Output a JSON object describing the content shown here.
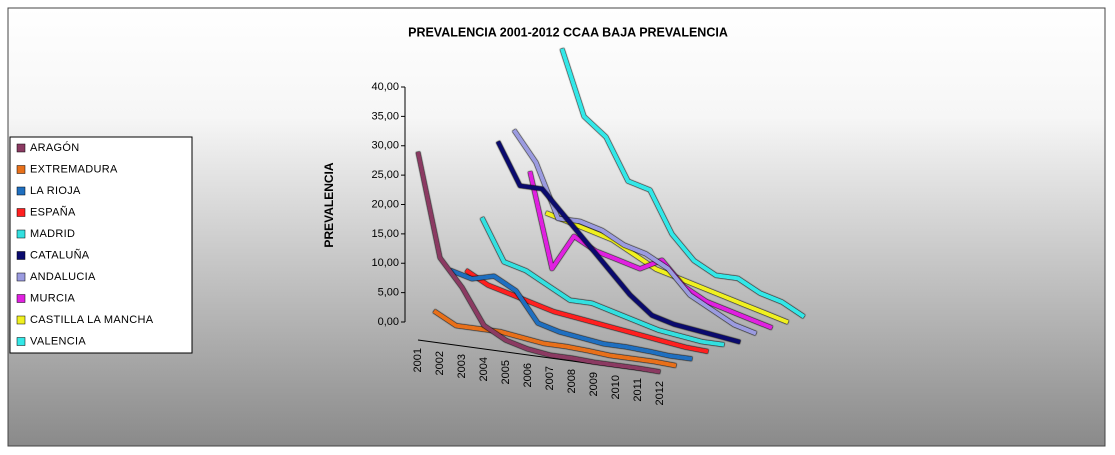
{
  "chart_data": {
    "type": "line3d",
    "title": "PREVALENCIA 2001-2012 CCAA BAJA PREVALENCIA",
    "y_label": "PREVALENCIA",
    "categories": [
      "2001",
      "2002",
      "2003",
      "2004",
      "2005",
      "2006",
      "2007",
      "2008",
      "2009",
      "2010",
      "2011",
      "2012"
    ],
    "ylim": [
      0,
      40
    ],
    "yticks": [
      {
        "value": 0,
        "label": "0,00"
      },
      {
        "value": 5,
        "label": "5,00"
      },
      {
        "value": 10,
        "label": "10,00"
      },
      {
        "value": 15,
        "label": "15,00"
      },
      {
        "value": 20,
        "label": "20,00"
      },
      {
        "value": 25,
        "label": "25,00"
      },
      {
        "value": 30,
        "label": "30,00"
      },
      {
        "value": 35,
        "label": "35,00"
      },
      {
        "value": 40,
        "label": "40,00"
      }
    ],
    "series": [
      {
        "name": "ARAGÓN",
        "color": "#8b3a62",
        "values": [
          32,
          14.5,
          10,
          4,
          2,
          1,
          0.5,
          0.5,
          0.3,
          0.3,
          0.3,
          0.2
        ]
      },
      {
        "name": "EXTREMADURA",
        "color": "#e8701a",
        "values": [
          4,
          2,
          2,
          2,
          1.5,
          1,
          1,
          0.8,
          0.5,
          0.5,
          0.5,
          0.3
        ]
      },
      {
        "name": "LA RIOJA",
        "color": "#1f6fc0",
        "values": [
          10,
          9,
          10,
          8,
          3,
          2,
          1.5,
          1,
          1,
          0.8,
          0.5,
          0.5
        ]
      },
      {
        "name": "ESPAÑA",
        "color": "#ff2020",
        "values": [
          9,
          7,
          6,
          5,
          4,
          3.5,
          3,
          2.5,
          2,
          1.5,
          1,
          0.8
        ]
      },
      {
        "name": "MADRID",
        "color": "#33e0e0",
        "values": [
          17,
          10,
          9,
          7,
          5,
          5,
          4,
          3,
          2,
          1.5,
          1,
          1
        ]
      },
      {
        "name": "CATALUÑA",
        "color": "#0a0a6e",
        "values": [
          29,
          22,
          22,
          18,
          14,
          10,
          6,
          3,
          2,
          1.5,
          1,
          0.5
        ]
      },
      {
        "name": "ANDALUCIA",
        "color": "#9b9be0",
        "values": [
          30,
          25,
          16,
          16,
          15,
          13,
          12,
          10,
          6,
          4,
          2,
          1
        ]
      },
      {
        "name": "MURCIA",
        "color": "#e020e0",
        "values": [
          22,
          6,
          12,
          10,
          9,
          8,
          10,
          6,
          4,
          3,
          2,
          1
        ]
      },
      {
        "name": "CASTILLA LA MANCHA",
        "color": "#f0f020",
        "values": [
          14,
          13,
          12,
          11,
          9,
          7,
          6,
          5,
          4,
          3,
          2,
          1
        ]
      },
      {
        "name": "VALENCIA",
        "color": "#33e8e8",
        "values": [
          41,
          30,
          27,
          20,
          19,
          12,
          8,
          6,
          6,
          4,
          3,
          1
        ]
      }
    ]
  }
}
